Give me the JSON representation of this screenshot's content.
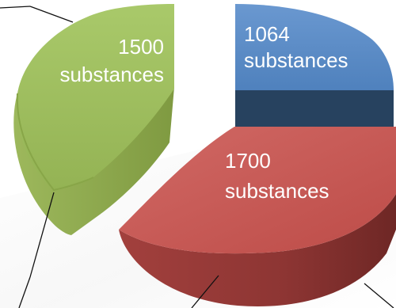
{
  "chart_data": {
    "type": "pie",
    "title": "",
    "style": "exploded 3d",
    "slices": [
      {
        "value": 1500,
        "label_value": "1500",
        "label_unit": "substances",
        "color": "#9BBB59"
      },
      {
        "value": 1064,
        "label_value": "1064",
        "label_unit": "substances",
        "color": "#4F81BD"
      },
      {
        "value": 1700,
        "label_value": "1700",
        "label_unit": "substances",
        "color": "#C0504D"
      }
    ]
  }
}
